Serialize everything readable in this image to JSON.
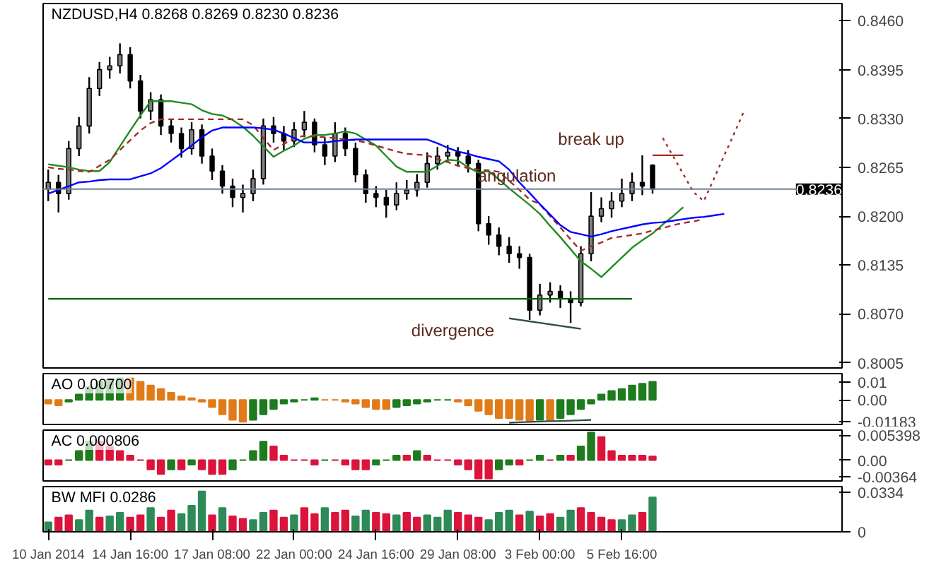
{
  "chart_data": [
    {
      "type": "candlestick",
      "title": "NZDUSD,H4 0.8268 0.8269 0.8230 0.8236",
      "tick_labels": "y",
      "categories": [
        null,
        null,
        null,
        null,
        null,
        null,
        null,
        null,
        null,
        null,
        null,
        null,
        null,
        null,
        null,
        null,
        null,
        null,
        null,
        null,
        null,
        null,
        null,
        null,
        null,
        null,
        null,
        null,
        null,
        null,
        null,
        null,
        null,
        null,
        null,
        null,
        null,
        null,
        null,
        null,
        null,
        null,
        null,
        null,
        null,
        null,
        null,
        null,
        null,
        null,
        null,
        null,
        null,
        null,
        null,
        null,
        null,
        null,
        null,
        null,
        null,
        null,
        null,
        null,
        null,
        null,
        null,
        null,
        null,
        null,
        null,
        null,
        null,
        null,
        null,
        null,
        null,
        null
      ],
      "ohlc": [
        [
          0.8236,
          0.8262,
          0.822,
          0.8245
        ],
        [
          0.8245,
          0.8255,
          0.8205,
          0.823
        ],
        [
          0.823,
          0.83,
          0.8222,
          0.829
        ],
        [
          0.829,
          0.8332,
          0.828,
          0.832
        ],
        [
          0.832,
          0.8385,
          0.831,
          0.837
        ],
        [
          0.837,
          0.8405,
          0.836,
          0.8395
        ],
        [
          0.8395,
          0.8412,
          0.8383,
          0.84
        ],
        [
          0.84,
          0.843,
          0.839,
          0.8415
        ],
        [
          0.8415,
          0.8425,
          0.837,
          0.838
        ],
        [
          0.838,
          0.8388,
          0.833,
          0.834
        ],
        [
          0.834,
          0.8365,
          0.8328,
          0.8355
        ],
        [
          0.8355,
          0.8362,
          0.8308,
          0.832
        ],
        [
          0.832,
          0.833,
          0.8298,
          0.831
        ],
        [
          0.831,
          0.8318,
          0.8278,
          0.829
        ],
        [
          0.829,
          0.8325,
          0.8282,
          0.8315
        ],
        [
          0.8315,
          0.8322,
          0.827,
          0.828
        ],
        [
          0.828,
          0.829,
          0.8248,
          0.826
        ],
        [
          0.826,
          0.8268,
          0.823,
          0.824
        ],
        [
          0.824,
          0.825,
          0.8212,
          0.8225
        ],
        [
          0.8225,
          0.8242,
          0.8205,
          0.823
        ],
        [
          0.823,
          0.8262,
          0.822,
          0.825
        ],
        [
          0.825,
          0.833,
          0.8242,
          0.832
        ],
        [
          0.832,
          0.8332,
          0.8298,
          0.831
        ],
        [
          0.831,
          0.832,
          0.8288,
          0.83
        ],
        [
          0.83,
          0.8325,
          0.8292,
          0.8315
        ],
        [
          0.8315,
          0.834,
          0.8305,
          0.8325
        ],
        [
          0.8325,
          0.833,
          0.8285,
          0.8295
        ],
        [
          0.8295,
          0.8305,
          0.8268,
          0.828
        ],
        [
          0.828,
          0.8325,
          0.8272,
          0.831
        ],
        [
          0.831,
          0.8318,
          0.828,
          0.829
        ],
        [
          0.829,
          0.8298,
          0.8245,
          0.8255
        ],
        [
          0.8255,
          0.8262,
          0.8218,
          0.823
        ],
        [
          0.823,
          0.824,
          0.8212,
          0.8225
        ],
        [
          0.8225,
          0.8235,
          0.8198,
          0.8215
        ],
        [
          0.8215,
          0.8245,
          0.8208,
          0.823
        ],
        [
          0.823,
          0.8248,
          0.8222,
          0.8235
        ],
        [
          0.8235,
          0.8256,
          0.8226,
          0.8245
        ],
        [
          0.8245,
          0.8285,
          0.8238,
          0.827
        ],
        [
          0.827,
          0.8292,
          0.8262,
          0.828
        ],
        [
          0.828,
          0.8295,
          0.8272,
          0.8285
        ],
        [
          0.8285,
          0.8292,
          0.8268,
          0.828
        ],
        [
          0.828,
          0.8288,
          0.8258,
          0.827
        ],
        [
          0.827,
          0.8275,
          0.818,
          0.819
        ],
        [
          0.819,
          0.82,
          0.8162,
          0.8175
        ],
        [
          0.8175,
          0.8185,
          0.8148,
          0.816
        ],
        [
          0.816,
          0.8172,
          0.8138,
          0.815
        ],
        [
          0.815,
          0.816,
          0.813,
          0.8145
        ],
        [
          0.8145,
          0.815,
          0.8062,
          0.8075
        ],
        [
          0.8075,
          0.811,
          0.8068,
          0.8095
        ],
        [
          0.8095,
          0.8112,
          0.8085,
          0.81
        ],
        [
          0.81,
          0.8108,
          0.8078,
          0.809
        ],
        [
          0.809,
          0.81,
          0.8058,
          0.8085
        ],
        [
          0.8085,
          0.816,
          0.808,
          0.815
        ],
        [
          0.815,
          0.8232,
          0.814,
          0.82
        ],
        [
          0.82,
          0.8225,
          0.8192,
          0.821
        ],
        [
          0.821,
          0.8232,
          0.8198,
          0.822
        ],
        [
          0.822,
          0.825,
          0.8212,
          0.823
        ],
        [
          0.823,
          0.8258,
          0.822,
          0.8245
        ],
        [
          0.8245,
          0.8281,
          0.8228,
          0.824
        ],
        [
          0.8268,
          0.8269,
          0.823,
          0.8236
        ],
        null,
        null,
        null,
        null,
        null,
        null,
        null,
        null,
        null,
        null,
        null,
        null,
        null,
        null,
        null,
        null,
        null,
        null
      ],
      "series": [
        {
          "type": "line",
          "color": "#228b22",
          "values": [
            0.8269,
            0.8267,
            0.8265,
            0.8262,
            0.826,
            0.826,
            0.8272,
            0.8293,
            0.8314,
            0.8334,
            0.8353,
            0.8353,
            0.8353,
            0.8351,
            0.8349,
            0.8341,
            0.8336,
            0.8334,
            0.8328,
            0.8319,
            0.8307,
            0.8293,
            0.8279,
            0.8287,
            0.8294,
            0.8303,
            0.8308,
            0.8308,
            0.831,
            0.8313,
            0.831,
            0.8302,
            0.8294,
            0.828,
            0.8266,
            0.8259,
            0.8259,
            0.8259,
            0.8267,
            0.8275,
            0.8274,
            0.8265,
            0.8258,
            0.826,
            0.8249,
            0.8237,
            0.8226,
            0.8215,
            0.8203,
            0.8187,
            0.8172,
            0.8156,
            0.814,
            0.813,
            0.8119,
            0.8132,
            0.8145,
            0.8158,
            0.8168,
            0.8177,
            0.8189,
            0.82,
            0.8212,
            null,
            null,
            null,
            null,
            null,
            null,
            null,
            null,
            null,
            null,
            null,
            null,
            null,
            null,
            null
          ]
        },
        {
          "type": "line",
          "color": "#a52a2a",
          "line_style": "dashed",
          "values": [
            0.8265,
            0.8263,
            0.8262,
            0.826,
            0.8259,
            0.8267,
            0.8275,
            0.8288,
            0.8301,
            0.8314,
            0.8324,
            0.8329,
            0.8329,
            0.8329,
            0.8329,
            0.8329,
            0.8329,
            0.8329,
            0.8329,
            0.8329,
            0.8321,
            0.8304,
            0.8288,
            0.8296,
            0.8304,
            0.8307,
            0.8306,
            0.8305,
            0.8304,
            0.8302,
            0.8301,
            0.8298,
            0.8294,
            0.829,
            0.8286,
            0.8283,
            0.8282,
            0.8281,
            0.8276,
            0.8272,
            0.8267,
            0.8264,
            0.8262,
            0.8261,
            0.8259,
            0.8247,
            0.8235,
            0.8222,
            0.8216,
            0.82,
            0.8185,
            0.8169,
            0.8154,
            0.816,
            0.8165,
            0.8171,
            0.8173,
            0.8175,
            0.8177,
            0.8181,
            0.8184,
            0.8188,
            0.8191,
            0.8193,
            0.8196,
            null,
            null,
            null,
            null,
            null,
            null,
            null,
            null,
            null,
            null,
            null,
            null,
            null
          ]
        },
        {
          "type": "line",
          "color": "#0000ff",
          "values": [
            0.823,
            0.8235,
            0.824,
            0.8245,
            0.8246,
            0.8248,
            0.8249,
            0.8249,
            0.8249,
            0.8253,
            0.8257,
            0.8264,
            0.8274,
            0.8284,
            0.8294,
            0.8305,
            0.8314,
            0.8318,
            0.8318,
            0.8318,
            0.8318,
            0.8317,
            0.8315,
            0.831,
            0.8304,
            0.8298,
            0.8298,
            0.8298,
            0.83,
            0.8301,
            0.8302,
            0.8302,
            0.8302,
            0.8302,
            0.8302,
            0.8302,
            0.8302,
            0.8302,
            0.8297,
            0.8291,
            0.8286,
            0.8283,
            0.8279,
            0.8276,
            0.8273,
            0.8262,
            0.8245,
            0.8231,
            0.8216,
            0.8202,
            0.8188,
            0.8179,
            0.8176,
            0.8173,
            0.8176,
            0.818,
            0.8183,
            0.8186,
            0.8189,
            0.8191,
            0.8192,
            0.8194,
            0.8196,
            0.8198,
            0.8199,
            0.8201,
            0.8203,
            null,
            null,
            null,
            null,
            null,
            null,
            null,
            null,
            null,
            null,
            null
          ]
        },
        {
          "type": "line",
          "color": "#006400",
          "values": [
            0.809,
            0.809,
            0.809,
            0.809,
            0.809,
            0.809,
            0.809,
            0.809,
            0.809,
            0.809,
            0.809,
            0.809,
            0.809,
            0.809,
            0.809,
            0.809,
            0.809,
            0.809,
            0.809,
            0.809,
            0.809,
            0.809,
            0.809,
            0.809,
            0.809,
            0.809,
            0.809,
            0.809,
            0.809,
            0.809,
            0.809,
            0.809,
            0.809,
            0.809,
            0.809,
            0.809,
            0.809,
            0.809,
            0.809,
            0.809,
            0.809,
            0.809,
            0.809,
            0.809,
            0.809,
            0.809,
            0.809,
            0.809,
            0.809,
            0.809,
            0.809,
            0.809,
            0.809,
            0.809,
            0.809,
            0.809,
            0.809,
            0.809,
            null,
            null,
            null,
            null,
            null,
            null,
            null,
            null,
            null,
            null,
            null,
            null,
            null,
            null,
            null,
            null,
            null,
            null,
            null,
            null
          ]
        },
        {
          "type": "line",
          "color": "#2f4f4f",
          "values": [
            null,
            null,
            null,
            null,
            null,
            null,
            null,
            null,
            null,
            null,
            null,
            null,
            null,
            null,
            null,
            null,
            null,
            null,
            null,
            null,
            null,
            null,
            null,
            null,
            null,
            null,
            null,
            null,
            null,
            null,
            null,
            null,
            null,
            null,
            null,
            null,
            null,
            null,
            null,
            null,
            null,
            null,
            null,
            null,
            null,
            0.8064,
            0.8062,
            0.806,
            0.8058,
            0.8056,
            0.8054,
            0.8052,
            0.805,
            null,
            null,
            null,
            null,
            null,
            null,
            null,
            null,
            null,
            null,
            null,
            null,
            null,
            null,
            null,
            null,
            null,
            null,
            null,
            null,
            null,
            null,
            null,
            null,
            null
          ]
        },
        {
          "type": "line",
          "color": "#a52a2a",
          "values": [
            null,
            null,
            null,
            null,
            null,
            null,
            null,
            null,
            null,
            null,
            null,
            null,
            null,
            null,
            null,
            null,
            null,
            null,
            null,
            null,
            null,
            null,
            null,
            null,
            null,
            null,
            null,
            null,
            null,
            null,
            null,
            null,
            null,
            null,
            null,
            null,
            null,
            null,
            null,
            null,
            null,
            null,
            null,
            null,
            null,
            null,
            null,
            null,
            null,
            null,
            null,
            null,
            null,
            null,
            null,
            null,
            null,
            null,
            null,
            0.8281,
            0.8281,
            0.8281,
            0.8281,
            null,
            null,
            null,
            null,
            null,
            null,
            null,
            null,
            null,
            null,
            null,
            null,
            null,
            null,
            null
          ]
        },
        {
          "type": "line",
          "color": "#a52a2a",
          "line_style": "dotted",
          "values": [
            null,
            null,
            null,
            null,
            null,
            null,
            null,
            null,
            null,
            null,
            null,
            null,
            null,
            null,
            null,
            null,
            null,
            null,
            null,
            null,
            null,
            null,
            null,
            null,
            null,
            null,
            null,
            null,
            null,
            null,
            null,
            null,
            null,
            null,
            null,
            null,
            null,
            null,
            null,
            null,
            null,
            null,
            null,
            null,
            null,
            null,
            null,
            null,
            null,
            null,
            null,
            null,
            null,
            null,
            null,
            null,
            null,
            null,
            null,
            null,
            0.8304,
            0.828,
            0.8256,
            0.8232,
            0.822,
            0.825,
            0.8281,
            0.8311,
            0.8342,
            null,
            null,
            null,
            null,
            null,
            null,
            null,
            null,
            null
          ]
        }
      ],
      "annotations": [
        "angulation",
        "divergence",
        "break up"
      ],
      "ref_lines": [
        {
          "axis": "y",
          "value": 0.8236,
          "label": "0.8236",
          "color": "#708090"
        }
      ],
      "ylim": [
        0.7998,
        0.8483
      ],
      "yticks": [
        {
          "value": 0.846,
          "label": "0.8460"
        },
        {
          "value": 0.8395,
          "label": "0.8395"
        },
        {
          "value": 0.833,
          "label": "0.8330"
        },
        {
          "value": 0.8265,
          "label": "0.8265"
        },
        {
          "value": 0.82,
          "label": "0.8200"
        },
        {
          "value": 0.8135,
          "label": "0.8135"
        },
        {
          "value": 0.807,
          "label": "0.8070"
        },
        {
          "value": 0.8005,
          "label": "0.8005"
        }
      ]
    },
    {
      "type": "bar",
      "title": "AO 0.00700",
      "tick_labels": "y",
      "categories": [
        null,
        null,
        null,
        null,
        null,
        null,
        null,
        null,
        null,
        null,
        null,
        null,
        null,
        null,
        null,
        null,
        null,
        null,
        null,
        null,
        null,
        null,
        null,
        null,
        null,
        null,
        null,
        null,
        null,
        null,
        null,
        null,
        null,
        null,
        null,
        null,
        null,
        null,
        null,
        null,
        null,
        null,
        null,
        null,
        null,
        null,
        null,
        null,
        null,
        null,
        null,
        null,
        null,
        null,
        null,
        null,
        null,
        null,
        null,
        null,
        null,
        null,
        null,
        null,
        null,
        null,
        null,
        null,
        null,
        null,
        null,
        null,
        null,
        null,
        null,
        null,
        null,
        null
      ],
      "values": [
        -0.002,
        -0.003,
        -0.001,
        0.003,
        0.007,
        0.01,
        0.011,
        0.012,
        0.012,
        0.01,
        0.008,
        0.006,
        0.004,
        0.002,
        0.001,
        -0.001,
        -0.004,
        -0.008,
        -0.011,
        -0.012,
        -0.011,
        -0.008,
        -0.005,
        -0.002,
        -0.001,
        0.0,
        0.001,
        0.0,
        0.0,
        -0.001,
        -0.002,
        -0.004,
        -0.005,
        -0.005,
        -0.004,
        -0.003,
        -0.002,
        -0.001,
        0.0,
        0.0,
        -0.001,
        -0.003,
        -0.006,
        -0.008,
        -0.01,
        -0.01,
        -0.011,
        -0.0115,
        -0.011,
        -0.0115,
        -0.01,
        -0.008,
        -0.005,
        -0.002,
        0.003,
        0.005,
        0.006,
        0.008,
        0.009,
        0.01,
        null,
        null,
        null,
        null,
        null,
        null,
        null,
        null,
        null,
        null,
        null,
        null,
        null,
        null,
        null,
        null,
        null,
        null
      ],
      "colors": [
        "#e07b1a",
        "#e07b1a",
        "#1e7b1e",
        "#1e7b1e",
        "#1e7b1e",
        "#1e7b1e",
        "#1e7b1e",
        "#1e7b1e",
        "#e07b1a",
        "#e07b1a",
        "#e07b1a",
        "#e07b1a",
        "#e07b1a",
        "#e07b1a",
        "#e07b1a",
        "#e07b1a",
        "#e07b1a",
        "#e07b1a",
        "#e07b1a",
        "#e07b1a",
        "#1e7b1e",
        "#1e7b1e",
        "#1e7b1e",
        "#1e7b1e",
        "#1e7b1e",
        "#1e7b1e",
        "#1e7b1e",
        "#e07b1a",
        "#e07b1a",
        "#e07b1a",
        "#e07b1a",
        "#e07b1a",
        "#e07b1a",
        "#e07b1a",
        "#1e7b1e",
        "#1e7b1e",
        "#1e7b1e",
        "#1e7b1e",
        "#1e7b1e",
        "#1e7b1e",
        "#e07b1a",
        "#e07b1a",
        "#e07b1a",
        "#e07b1a",
        "#e07b1a",
        "#e07b1a",
        "#e07b1a",
        "#e07b1a",
        "#1e7b1e",
        "#e07b1a",
        "#1e7b1e",
        "#1e7b1e",
        "#1e7b1e",
        "#1e7b1e",
        "#1e7b1e",
        "#1e7b1e",
        "#1e7b1e",
        "#1e7b1e",
        "#1e7b1e",
        "#1e7b1e",
        null,
        null,
        null,
        null,
        null,
        null,
        null,
        null,
        null,
        null,
        null,
        null,
        null,
        null,
        null,
        null,
        null,
        null
      ],
      "series": [
        {
          "type": "line",
          "color": "#2f4f4f",
          "values": [
            null,
            null,
            null,
            null,
            null,
            null,
            null,
            null,
            null,
            null,
            null,
            null,
            null,
            null,
            null,
            null,
            null,
            null,
            null,
            null,
            null,
            null,
            null,
            null,
            null,
            null,
            null,
            null,
            null,
            null,
            null,
            null,
            null,
            null,
            null,
            null,
            null,
            null,
            null,
            null,
            null,
            null,
            null,
            null,
            null,
            -0.0125,
            -0.0123,
            -0.0121,
            -0.0119,
            -0.0117,
            -0.0116,
            -0.0114,
            -0.0112,
            -0.011,
            null,
            null,
            null,
            null,
            null,
            null,
            null,
            null,
            null,
            null,
            null,
            null,
            null,
            null,
            null,
            null,
            null,
            null,
            null,
            null,
            null,
            null,
            null,
            null
          ]
        }
      ],
      "ylim": [
        -0.0135,
        0.0145
      ],
      "yticks": [
        {
          "value": 0.01,
          "label": "0.01"
        },
        {
          "value": 0,
          "label": "0.00"
        },
        {
          "value": -0.01183,
          "label": "-0.01183"
        }
      ]
    },
    {
      "type": "bar",
      "title": "AC 0.000806",
      "tick_labels": "y",
      "categories": [
        null,
        null,
        null,
        null,
        null,
        null,
        null,
        null,
        null,
        null,
        null,
        null,
        null,
        null,
        null,
        null,
        null,
        null,
        null,
        null,
        null,
        null,
        null,
        null,
        null,
        null,
        null,
        null,
        null,
        null,
        null,
        null,
        null,
        null,
        null,
        null,
        null,
        null,
        null,
        null,
        null,
        null,
        null,
        null,
        null,
        null,
        null,
        null,
        null,
        null,
        null,
        null,
        null,
        null,
        null,
        null,
        null,
        null,
        null,
        null,
        null,
        null,
        null,
        null,
        null,
        null,
        null,
        null,
        null,
        null,
        null,
        null,
        null,
        null,
        null,
        null,
        null,
        null
      ],
      "values": [
        -0.001,
        -0.001,
        0.0,
        0.002,
        0.004,
        0.004,
        0.003,
        0.002,
        0.001,
        0.0,
        -0.002,
        -0.003,
        -0.002,
        -0.002,
        -0.001,
        -0.002,
        -0.003,
        -0.003,
        -0.002,
        0.0,
        0.002,
        0.004,
        0.003,
        0.001,
        0.0,
        0.0,
        -0.001,
        0.0,
        0.0,
        -0.001,
        -0.002,
        -0.002,
        -0.001,
        0.0,
        0.001,
        0.001,
        0.002,
        0.001,
        0.0,
        0.0,
        -0.001,
        -0.002,
        -0.004,
        -0.004,
        -0.002,
        -0.001,
        -0.001,
        0.0,
        0.001,
        0.0,
        0.001,
        0.001,
        0.003,
        0.006,
        0.005,
        0.002,
        0.001,
        0.001,
        0.001,
        0.0008,
        null,
        null,
        null,
        null,
        null,
        null,
        null,
        null,
        null,
        null,
        null,
        null,
        null,
        null,
        null,
        null,
        null,
        null
      ],
      "colors": [
        "#dc143c",
        "#dc143c",
        "#1e7b1e",
        "#1e7b1e",
        "#1e7b1e",
        "#dc143c",
        "#dc143c",
        "#dc143c",
        "#dc143c",
        "#dc143c",
        "#dc143c",
        "#dc143c",
        "#1e7b1e",
        "#dc143c",
        "#1e7b1e",
        "#dc143c",
        "#dc143c",
        "#dc143c",
        "#1e7b1e",
        "#1e7b1e",
        "#1e7b1e",
        "#1e7b1e",
        "#dc143c",
        "#dc143c",
        "#dc143c",
        "#dc143c",
        "#dc143c",
        "#1e7b1e",
        "#dc143c",
        "#dc143c",
        "#dc143c",
        "#dc143c",
        "#1e7b1e",
        "#1e7b1e",
        "#1e7b1e",
        "#dc143c",
        "#1e7b1e",
        "#dc143c",
        "#dc143c",
        "#dc143c",
        "#dc143c",
        "#dc143c",
        "#dc143c",
        "#dc143c",
        "#1e7b1e",
        "#1e7b1e",
        "#dc143c",
        "#1e7b1e",
        "#1e7b1e",
        "#dc143c",
        "#1e7b1e",
        "#dc143c",
        "#1e7b1e",
        "#1e7b1e",
        "#dc143c",
        "#dc143c",
        "#dc143c",
        "#dc143c",
        "#dc143c",
        "#dc143c",
        null,
        null,
        null,
        null,
        null,
        null,
        null,
        null,
        null,
        null,
        null,
        null,
        null,
        null,
        null,
        null,
        null,
        null
      ],
      "ylim": [
        -0.0045,
        0.0065
      ],
      "yticks": [
        {
          "value": 0.005398,
          "label": "0.005398"
        },
        {
          "value": 0,
          "label": "0.00"
        },
        {
          "value": -0.00364,
          "label": "-0.00364"
        }
      ]
    },
    {
      "type": "bar",
      "title": "BW MFI 0.0286",
      "categories": [
        "10 Jan 2014",
        null,
        null,
        null,
        null,
        null,
        null,
        null,
        "14 Jan 16:00",
        null,
        null,
        null,
        null,
        null,
        null,
        null,
        "17 Jan 08:00",
        null,
        null,
        null,
        null,
        null,
        null,
        null,
        "22 Jan 00:00",
        null,
        null,
        null,
        null,
        null,
        null,
        null,
        "24 Jan 16:00",
        null,
        null,
        null,
        null,
        null,
        null,
        null,
        "29 Jan 08:00",
        null,
        null,
        null,
        null,
        null,
        null,
        null,
        "3 Feb 00:00",
        null,
        null,
        null,
        null,
        null,
        null,
        null,
        "5 Feb 16:00",
        null,
        null,
        null,
        null,
        null,
        null,
        null,
        null,
        null,
        null,
        null,
        null,
        null,
        null,
        null,
        null,
        null,
        null,
        null,
        null,
        null
      ],
      "values": [
        0.008,
        0.012,
        0.014,
        0.01,
        0.018,
        0.012,
        0.013,
        0.016,
        0.012,
        0.014,
        0.02,
        0.012,
        0.018,
        0.015,
        0.022,
        0.034,
        0.014,
        0.02,
        0.013,
        0.011,
        0.01,
        0.016,
        0.018,
        0.012,
        0.014,
        0.02,
        0.015,
        0.02,
        0.016,
        0.018,
        0.013,
        0.018,
        0.016,
        0.015,
        0.014,
        0.016,
        0.012,
        0.014,
        0.012,
        0.018,
        0.016,
        0.014,
        0.012,
        0.01,
        0.016,
        0.018,
        0.014,
        0.017,
        0.013,
        0.015,
        0.012,
        0.018,
        0.02,
        0.016,
        0.012,
        0.01,
        0.01,
        0.014,
        0.016,
        0.029,
        null,
        null,
        null,
        null,
        null,
        null,
        null,
        null,
        null,
        null,
        null,
        null,
        null,
        null,
        null,
        null,
        null,
        null
      ],
      "colors": [
        "#2e8b57",
        "#dc143c",
        "#dc143c",
        "#2e8b57",
        "#2e8b57",
        "#dc143c",
        "#2e8b57",
        "#2e8b57",
        "#dc143c",
        "#dc143c",
        "#2e8b57",
        "#dc143c",
        "#dc143c",
        "#2e8b57",
        "#2e8b57",
        "#2e8b57",
        "#dc143c",
        "#2e8b57",
        "#dc143c",
        "#dc143c",
        "#2e8b57",
        "#2e8b57",
        "#dc143c",
        "#dc143c",
        "#2e8b57",
        "#dc143c",
        "#dc143c",
        "#2e8b57",
        "#dc143c",
        "#dc143c",
        "#2e8b57",
        "#2e8b57",
        "#dc143c",
        "#dc143c",
        "#2e8b57",
        "#dc143c",
        "#dc143c",
        "#2e8b57",
        "#2e8b57",
        "#2e8b57",
        "#dc143c",
        "#dc143c",
        "#dc143c",
        "#2e8b57",
        "#2e8b57",
        "#2e8b57",
        "#dc143c",
        "#2e8b57",
        "#dc143c",
        "#dc143c",
        "#2e8b57",
        "#2e8b57",
        "#dc143c",
        "#dc143c",
        "#dc143c",
        "#dc143c",
        "#2e8b57",
        "#2e8b57",
        "#dc143c",
        "#2e8b57",
        null,
        null,
        null,
        null,
        null,
        null,
        null,
        null,
        null,
        null,
        null,
        null,
        null,
        null,
        null,
        null,
        null,
        null
      ],
      "ylim": [
        0,
        0.038
      ],
      "yticks": [
        {
          "value": 0.0334,
          "label": "0.0334"
        },
        {
          "value": 0,
          "label": "0"
        }
      ]
    }
  ]
}
